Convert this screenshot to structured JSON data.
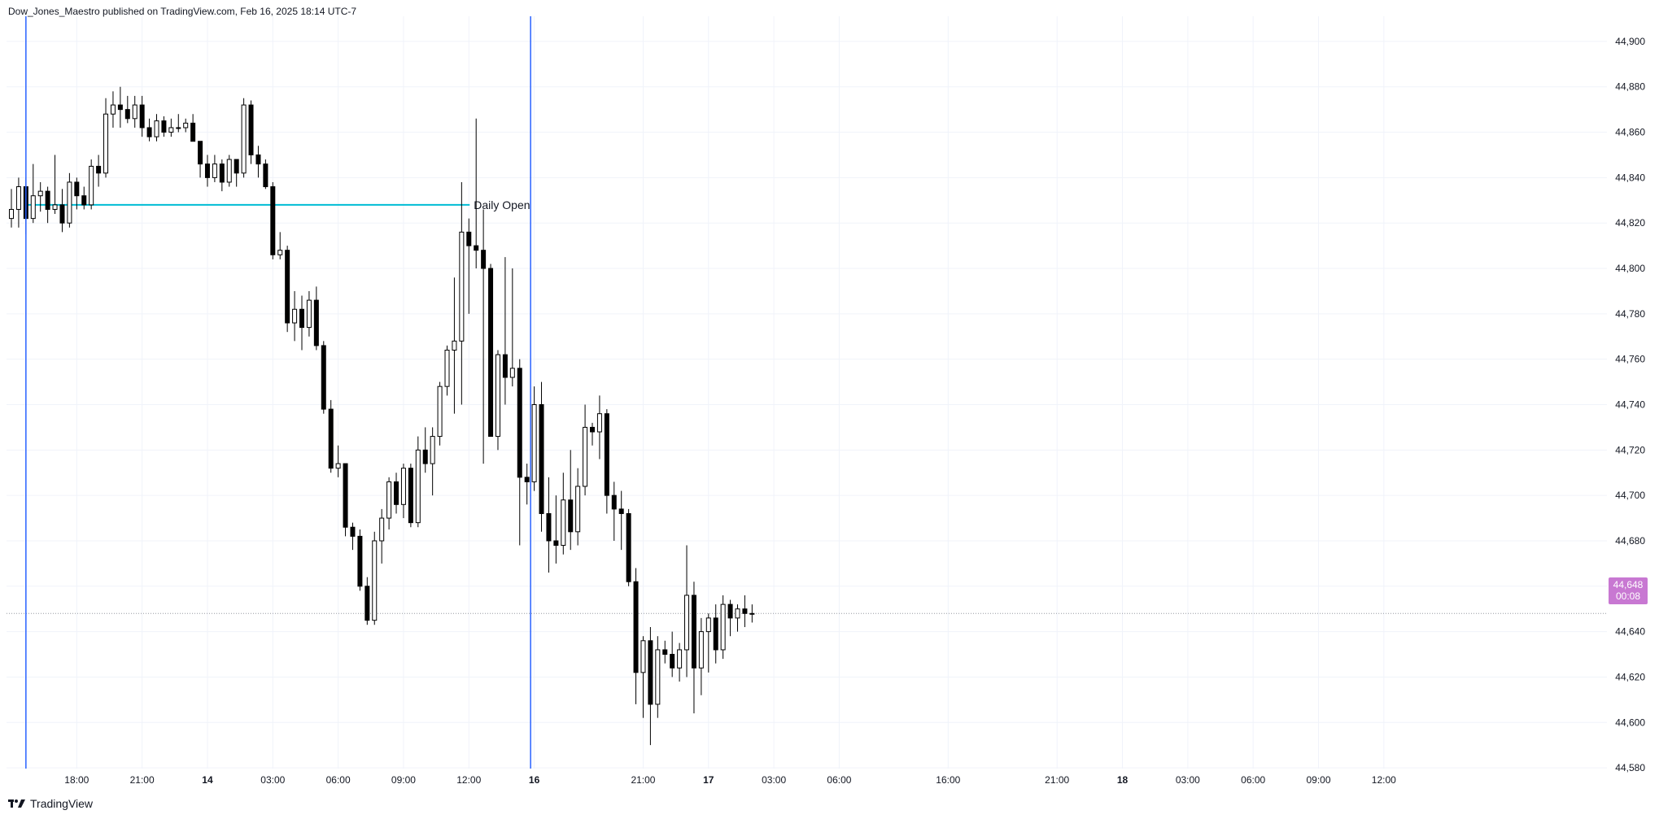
{
  "header": {
    "published_by": "Dow_Jones_Maestro published on TradingView.com, Feb 16, 2025 18:14 UTC-7"
  },
  "brand": {
    "label": "TradingView",
    "icon": "tradingview-logo-icon"
  },
  "last_price": {
    "price": "44,648",
    "countdown": "00:08"
  },
  "colors": {
    "up_body": "#ffffff",
    "down_body": "#000000",
    "wick": "#000000",
    "daily_open": "#00bcd4",
    "session_line": "#2962ff",
    "badge": "#c878d2",
    "grid": "#f0f3fa"
  },
  "chart_data": {
    "type": "candlestick",
    "title": "",
    "ylim": [
      44570,
      44910
    ],
    "yticks": [
      "44,900",
      "44,880",
      "44,860",
      "44,840",
      "44,820",
      "44,800",
      "44,780",
      "44,760",
      "44,740",
      "44,720",
      "44,700",
      "44,680",
      "44,660",
      "44,640",
      "44,620",
      "44,600",
      "44,580"
    ],
    "xticks": [
      {
        "label": "18:00",
        "i": 9,
        "bold": false
      },
      {
        "label": "21:00",
        "i": 18,
        "bold": false
      },
      {
        "label": "14",
        "i": 27,
        "bold": true
      },
      {
        "label": "03:00",
        "i": 36,
        "bold": false
      },
      {
        "label": "06:00",
        "i": 45,
        "bold": false
      },
      {
        "label": "09:00",
        "i": 54,
        "bold": false
      },
      {
        "label": "12:00",
        "i": 63,
        "bold": false
      },
      {
        "label": "16",
        "i": 72,
        "bold": true
      },
      {
        "label": "21:00",
        "i": 87,
        "bold": false
      },
      {
        "label": "17",
        "i": 96,
        "bold": true
      },
      {
        "label": "03:00",
        "i": 105,
        "bold": false
      },
      {
        "label": "06:00",
        "i": 114,
        "bold": false
      },
      {
        "label": "16:00",
        "i": 129,
        "bold": false
      },
      {
        "label": "21:00",
        "i": 144,
        "bold": false
      },
      {
        "label": "18",
        "i": 153,
        "bold": true
      },
      {
        "label": "03:00",
        "i": 162,
        "bold": false
      },
      {
        "label": "06:00",
        "i": 171,
        "bold": false
      },
      {
        "label": "09:00",
        "i": 180,
        "bold": false
      },
      {
        "label": "12:00",
        "i": 189,
        "bold": false
      }
    ],
    "daily_open": {
      "label": "Daily Open",
      "value": 44828,
      "from_i": 2,
      "to_i": 63
    },
    "session_lines_i": [
      2,
      71.5
    ],
    "current_price": 44648,
    "candles": [
      [
        44822,
        44835,
        44818,
        44826
      ],
      [
        44826,
        44840,
        44818,
        44836
      ],
      [
        44836,
        44840,
        44815,
        44822
      ],
      [
        44822,
        44846,
        44820,
        44832
      ],
      [
        44832,
        44838,
        44825,
        44834
      ],
      [
        44834,
        44836,
        44820,
        44826
      ],
      [
        44826,
        44850,
        44824,
        44828
      ],
      [
        44828,
        44835,
        44816,
        44820
      ],
      [
        44820,
        44842,
        44818,
        44838
      ],
      [
        44838,
        44840,
        44826,
        44832
      ],
      [
        44832,
        44836,
        44826,
        44828
      ],
      [
        44828,
        44848,
        44826,
        44845
      ],
      [
        44845,
        44850,
        44836,
        44842
      ],
      [
        44842,
        44875,
        44840,
        44868
      ],
      [
        44868,
        44878,
        44862,
        44872
      ],
      [
        44872,
        44880,
        44862,
        44870
      ],
      [
        44870,
        44876,
        44864,
        44866
      ],
      [
        44866,
        44876,
        44862,
        44872
      ],
      [
        44872,
        44876,
        44858,
        44862
      ],
      [
        44862,
        44866,
        44856,
        44858
      ],
      [
        44858,
        44868,
        44856,
        44865
      ],
      [
        44865,
        44867,
        44858,
        44860
      ],
      [
        44860,
        44866,
        44858,
        44862
      ],
      [
        44862,
        44868,
        44860,
        44862
      ],
      [
        44862,
        44866,
        44860,
        44864
      ],
      [
        44864,
        44868,
        44856,
        44856
      ],
      [
        44856,
        44856,
        44840,
        44846
      ],
      [
        44846,
        44850,
        44836,
        44840
      ],
      [
        44840,
        44850,
        44838,
        44846
      ],
      [
        44846,
        44848,
        44834,
        44838
      ],
      [
        44838,
        44850,
        44836,
        44848
      ],
      [
        44848,
        44848,
        44836,
        44842
      ],
      [
        44842,
        44875,
        44840,
        44872
      ],
      [
        44872,
        44874,
        44846,
        44850
      ],
      [
        44850,
        44854,
        44840,
        44846
      ],
      [
        44846,
        44848,
        44835,
        44836
      ],
      [
        44836,
        44838,
        44804,
        44806
      ],
      [
        44806,
        44816,
        44804,
        44808
      ],
      [
        44808,
        44810,
        44772,
        44776
      ],
      [
        44776,
        44790,
        44768,
        44782
      ],
      [
        44782,
        44788,
        44764,
        44774
      ],
      [
        44774,
        44790,
        44770,
        44786
      ],
      [
        44786,
        44792,
        44764,
        44766
      ],
      [
        44766,
        44768,
        44736,
        44738
      ],
      [
        44738,
        44742,
        44710,
        44712
      ],
      [
        44712,
        44722,
        44708,
        44714
      ],
      [
        44714,
        44714,
        44682,
        44686
      ],
      [
        44686,
        44688,
        44676,
        44682
      ],
      [
        44682,
        44685,
        44658,
        44660
      ],
      [
        44660,
        44664,
        44643,
        44645
      ],
      [
        44645,
        44684,
        44643,
        44680
      ],
      [
        44680,
        44694,
        44670,
        44690
      ],
      [
        44690,
        44708,
        44685,
        44706
      ],
      [
        44706,
        44710,
        44692,
        44696
      ],
      [
        44696,
        44714,
        44690,
        44712
      ],
      [
        44712,
        44714,
        44686,
        44688
      ],
      [
        44688,
        44726,
        44686,
        44720
      ],
      [
        44720,
        44730,
        44710,
        44714
      ],
      [
        44714,
        44730,
        44700,
        44726
      ],
      [
        44726,
        44750,
        44722,
        44748
      ],
      [
        44748,
        44766,
        44744,
        44764
      ],
      [
        44764,
        44796,
        44736,
        44768
      ],
      [
        44768,
        44838,
        44740,
        44816
      ],
      [
        44816,
        44822,
        44780,
        44810
      ],
      [
        44810,
        44866,
        44800,
        44808
      ],
      [
        44808,
        44826,
        44714,
        44800
      ],
      [
        44800,
        44802,
        44728,
        44726
      ],
      [
        44726,
        44764,
        44720,
        44762
      ],
      [
        44762,
        44805,
        44740,
        44752
      ],
      [
        44752,
        44800,
        44748,
        44756
      ],
      [
        44756,
        44760,
        44678,
        44708
      ],
      [
        44708,
        44714,
        44696,
        44706
      ],
      [
        44706,
        44748,
        44702,
        44740
      ],
      [
        44740,
        44750,
        44684,
        44692
      ],
      [
        44692,
        44708,
        44666,
        44680
      ],
      [
        44680,
        44700,
        44670,
        44678
      ],
      [
        44678,
        44710,
        44674,
        44698
      ],
      [
        44698,
        44720,
        44676,
        44684
      ],
      [
        44684,
        44712,
        44678,
        44704
      ],
      [
        44704,
        44740,
        44700,
        44730
      ],
      [
        44730,
        44732,
        44722,
        44728
      ],
      [
        44728,
        44744,
        44716,
        44736
      ],
      [
        44736,
        44738,
        44692,
        44700
      ],
      [
        44700,
        44706,
        44680,
        44694
      ],
      [
        44694,
        44702,
        44676,
        44692
      ],
      [
        44692,
        44694,
        44660,
        44662
      ],
      [
        44662,
        44668,
        44608,
        44622
      ],
      [
        44622,
        44638,
        44602,
        44636
      ],
      [
        44636,
        44642,
        44590,
        44608
      ],
      [
        44608,
        44638,
        44602,
        44632
      ],
      [
        44632,
        44636,
        44626,
        44630
      ],
      [
        44630,
        44640,
        44620,
        44624
      ],
      [
        44624,
        44635,
        44618,
        44632
      ],
      [
        44632,
        44678,
        44620,
        44656
      ],
      [
        44656,
        44662,
        44604,
        44624
      ],
      [
        44624,
        44646,
        44612,
        44640
      ],
      [
        44640,
        44648,
        44622,
        44646
      ],
      [
        44646,
        44652,
        44626,
        44632
      ],
      [
        44632,
        44656,
        44628,
        44652
      ],
      [
        44652,
        44654,
        44638,
        44646
      ],
      [
        44646,
        44652,
        44640,
        44650
      ],
      [
        44650,
        44656,
        44642,
        44648
      ],
      [
        44648,
        44652,
        44644,
        44648
      ]
    ]
  }
}
